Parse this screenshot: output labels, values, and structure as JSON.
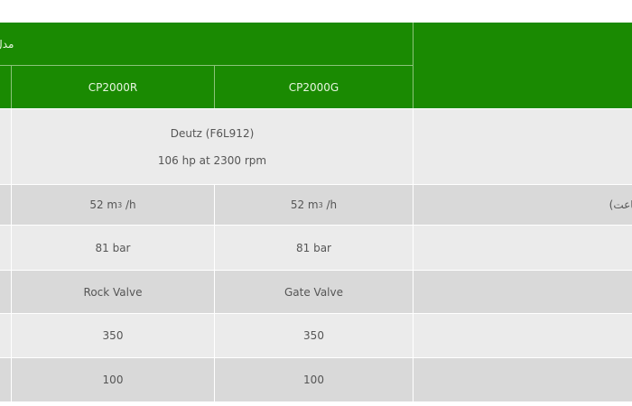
{
  "header": {
    "model_label": "مدل",
    "models": [
      "CP2000R",
      "CP2000G"
    ]
  },
  "rows": [
    {
      "label": "",
      "merged": [
        "Deutz (F6L912)",
        "106 hp at 2300 rpm"
      ]
    },
    {
      "label": "ساعت)",
      "values": [
        "52 m",
        "52 m"
      ],
      "sup": "3",
      "suffix": " /h"
    },
    {
      "label": "",
      "values": [
        "81 bar",
        "81 bar"
      ]
    },
    {
      "label": "",
      "values": [
        "Rock Valve",
        "Gate Valve"
      ]
    },
    {
      "label": "",
      "values": [
        "350",
        "350"
      ]
    },
    {
      "label": "",
      "values": [
        "100",
        "100"
      ]
    }
  ],
  "colors": {
    "header_green": "#1a8a02",
    "row_light": "#ebebeb",
    "row_dark": "#d9d9d9"
  }
}
